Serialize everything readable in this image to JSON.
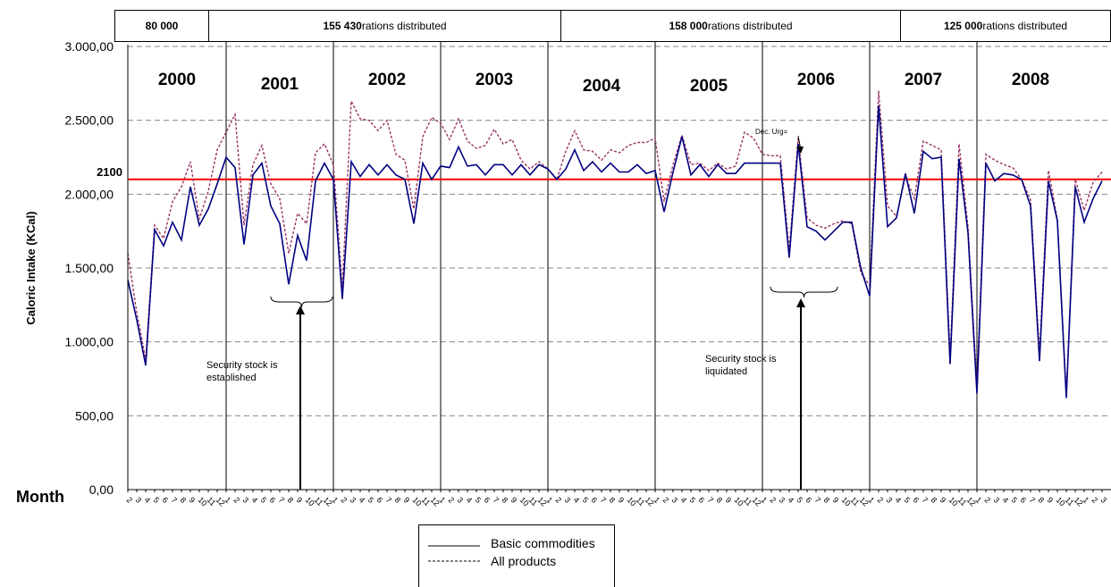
{
  "chart_data": {
    "type": "line",
    "title": "",
    "ylabel": "Caloric Intake (KCal)",
    "xlabel": "Month",
    "ylim": [
      0,
      3000
    ],
    "y_ticks": [
      "0,00",
      "500,00",
      "1.000,00",
      "1.500,00",
      "2.000,00",
      "2.500,00",
      "3.000,00"
    ],
    "grid": "horizontal dashed",
    "years": [
      "2000",
      "2001",
      "2002",
      "2003",
      "2004",
      "2005",
      "2006",
      "2007",
      "2008"
    ],
    "months": [
      "1",
      "2",
      "3",
      "4",
      "5",
      "6",
      "7",
      "8",
      "9",
      "10",
      "11",
      "12"
    ],
    "reference_line": {
      "value": 2100,
      "label": "2100",
      "color": "#ff0000"
    },
    "ration_bands": [
      {
        "bold": "80 000",
        "text": ""
      },
      {
        "bold": "155 430",
        "text": " rations distributed"
      },
      {
        "bold": "158 000",
        "text": " rations distributed"
      },
      {
        "bold": "125 000",
        "text": " rations distributed"
      }
    ],
    "annotations": {
      "security_established": "Security stock is established",
      "security_liquidated": "Security stock is liquidated",
      "dec_urg": "Déc. Urg="
    },
    "series": [
      {
        "name": "Basic commodities",
        "color": "#000080",
        "style": "solid",
        "values": [
          1420,
          1150,
          840,
          1760,
          1650,
          1810,
          1690,
          2050,
          1790,
          1900,
          2070,
          2250,
          2180,
          1660,
          2130,
          2210,
          1920,
          1800,
          1390,
          1720,
          1550,
          2090,
          2210,
          2100,
          1290,
          2220,
          2120,
          2200,
          2130,
          2200,
          2130,
          2100,
          1800,
          2210,
          2100,
          2190,
          2180,
          2320,
          2190,
          2200,
          2130,
          2200,
          2200,
          2130,
          2200,
          2130,
          2200,
          2170,
          2100,
          2170,
          2300,
          2160,
          2220,
          2150,
          2210,
          2150,
          2150,
          2200,
          2140,
          2160,
          1880,
          2150,
          2390,
          2130,
          2200,
          2120,
          2200,
          2140,
          2140,
          2210,
          2210,
          2210,
          2210,
          2210,
          1570,
          2340,
          1780,
          1750,
          1690,
          1750,
          1810,
          1810,
          1500,
          1310,
          2600,
          1780,
          1840,
          2140,
          1870,
          2290,
          2240,
          2250,
          850,
          2240,
          1740,
          650,
          2210,
          2090,
          2140,
          2130,
          2100,
          1920,
          870,
          2090,
          1820,
          620,
          2050,
          1810,
          1970,
          2090
        ]
      },
      {
        "name": "All products",
        "color": "#993366",
        "style": "dashed",
        "values": [
          1600,
          1200,
          880,
          1790,
          1700,
          1950,
          2050,
          2220,
          1830,
          2020,
          2300,
          2420,
          2540,
          1790,
          2200,
          2330,
          2070,
          1970,
          1600,
          1870,
          1800,
          2280,
          2340,
          2200,
          1370,
          2630,
          2510,
          2500,
          2430,
          2500,
          2270,
          2230,
          1900,
          2390,
          2520,
          2480,
          2370,
          2510,
          2360,
          2310,
          2330,
          2440,
          2340,
          2370,
          2230,
          2170,
          2220,
          2170,
          2100,
          2290,
          2430,
          2300,
          2290,
          2230,
          2300,
          2280,
          2330,
          2350,
          2350,
          2380,
          1950,
          2200,
          2400,
          2200,
          2210,
          2160,
          2210,
          2170,
          2190,
          2420,
          2380,
          2270,
          2260,
          2260,
          1620,
          2380,
          1840,
          1790,
          1770,
          1800,
          1820,
          1800,
          1470,
          1380,
          2700,
          1920,
          1850,
          2120,
          1970,
          2360,
          2330,
          2300,
          900,
          2340,
          1780,
          700,
          2270,
          2230,
          2200,
          2180,
          2100,
          1960,
          920,
          2160,
          1830,
          640,
          2100,
          1890,
          2080,
          2150
        ]
      }
    ]
  }
}
